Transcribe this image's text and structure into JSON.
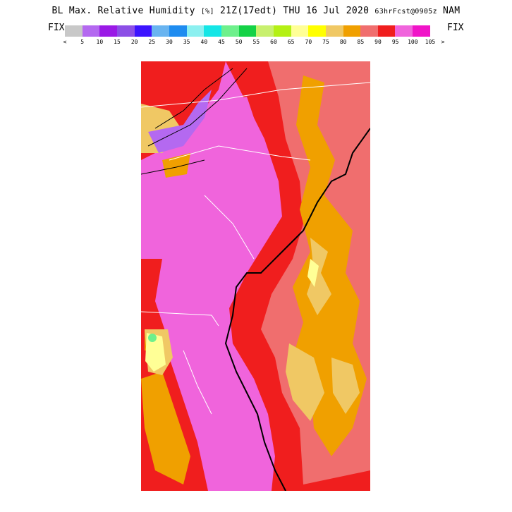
{
  "title": {
    "main": "BL Max. Relative Humidity",
    "units": "[%]",
    "valid": "21Z(17edt) THU 16 Jul 2020",
    "forecast": "63hrFcst@0905z",
    "model": "NAM"
  },
  "fix_left": "FIX",
  "fix_right": "FIX",
  "colorbar": {
    "left_arrow": "<",
    "right_arrow": ">",
    "labels": [
      "5",
      "10",
      "15",
      "20",
      "25",
      "30",
      "35",
      "40",
      "45",
      "50",
      "55",
      "60",
      "65",
      "70",
      "75",
      "80",
      "85",
      "90",
      "95",
      "100",
      "105"
    ],
    "colors": [
      "#c8c8c8",
      "#b469f0",
      "#9a1ae6",
      "#8c4fe6",
      "#3c14ff",
      "#69b4f0",
      "#1e8cf0",
      "#8cf0f0",
      "#14e6e6",
      "#6ef08c",
      "#14d246",
      "#c8f06e",
      "#b4f014",
      "#ffff96",
      "#ffff00",
      "#f0c864",
      "#f0a000",
      "#f06e6e",
      "#f01e1e",
      "#f064dc",
      "#f014c8"
    ]
  }
}
